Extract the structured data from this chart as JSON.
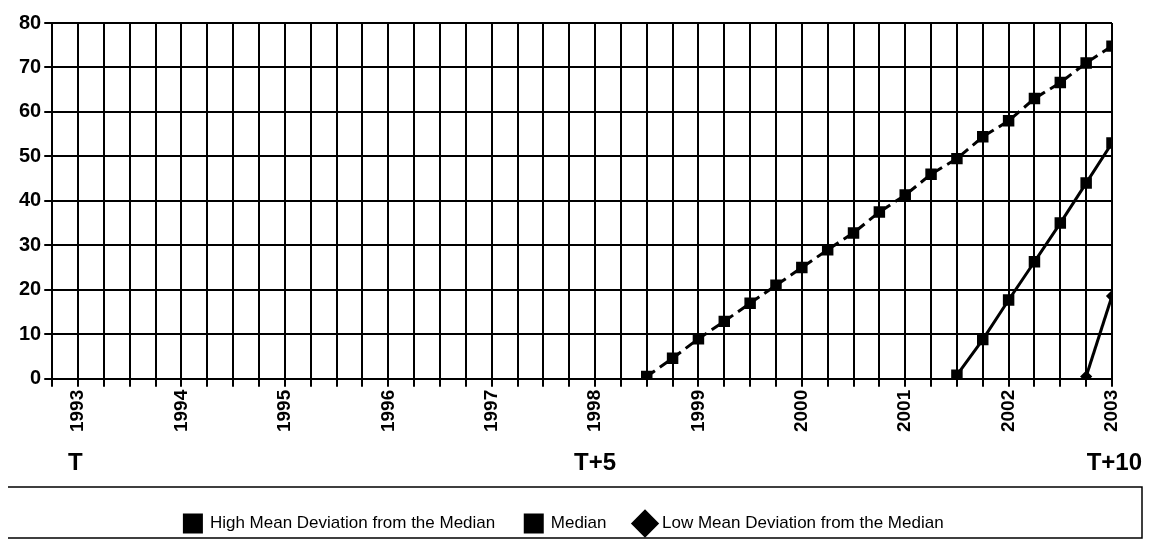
{
  "chart_data": {
    "type": "line",
    "xlim": [
      1992.75,
      2003
    ],
    "ylim": [
      0,
      80
    ],
    "yticks": [
      0,
      10,
      20,
      30,
      40,
      50,
      60,
      70,
      80
    ],
    "xticks": [
      {
        "value": 1992.75,
        "label": null
      },
      1993,
      {
        "value": 1993.25,
        "label": null
      },
      {
        "value": 1993.5,
        "label": null
      },
      {
        "value": 1993.75,
        "label": null
      },
      1994,
      {
        "value": 1994.25,
        "label": null
      },
      {
        "value": 1994.5,
        "label": null
      },
      {
        "value": 1994.75,
        "label": null
      },
      1995,
      {
        "value": 1995.25,
        "label": null
      },
      {
        "value": 1995.5,
        "label": null
      },
      {
        "value": 1995.75,
        "label": null
      },
      1996,
      {
        "value": 1996.25,
        "label": null
      },
      {
        "value": 1996.5,
        "label": null
      },
      {
        "value": 1996.75,
        "label": null
      },
      1997,
      {
        "value": 1997.25,
        "label": null
      },
      {
        "value": 1997.5,
        "label": null
      },
      {
        "value": 1997.75,
        "label": null
      },
      1998,
      {
        "value": 1998.25,
        "label": null
      },
      {
        "value": 1998.5,
        "label": null
      },
      {
        "value": 1998.75,
        "label": null
      },
      1999,
      {
        "value": 1999.25,
        "label": null
      },
      {
        "value": 1999.5,
        "label": null
      },
      {
        "value": 1999.75,
        "label": null
      },
      2000,
      {
        "value": 2000.25,
        "label": null
      },
      {
        "value": 2000.5,
        "label": null
      },
      {
        "value": 2000.75,
        "label": null
      },
      2001,
      {
        "value": 2001.25,
        "label": null
      },
      {
        "value": 2001.5,
        "label": null
      },
      {
        "value": 2001.75,
        "label": null
      },
      2002,
      {
        "value": 2002.25,
        "label": null
      },
      {
        "value": 2002.5,
        "label": null
      },
      {
        "value": 2002.75,
        "label": null
      },
      2003
    ],
    "grid": true,
    "legend": "bottom",
    "series": [
      {
        "name": "High Mean Deviation from the Median",
        "color": "#000000",
        "line_style": "dashed",
        "marker": "square",
        "x": [
          1998.5,
          1998.75,
          1999,
          1999.25,
          1999.5,
          1999.75,
          2000,
          2000.25,
          2000.5,
          2000.75,
          2001,
          2001.25,
          2001.5,
          2001.75,
          2002,
          2002.25,
          2002.5,
          2002.75,
          2003
        ],
        "values": [
          0.5,
          4.6,
          9,
          12.9,
          17,
          21,
          25,
          29,
          32.8,
          37.5,
          41.3,
          46,
          49.5,
          54.4,
          58,
          63,
          66.6,
          71,
          74.8
        ]
      },
      {
        "name": "Median",
        "color": "#000000",
        "line_style": "solid",
        "marker": "square",
        "x": [
          2001.5,
          2001.75,
          2002,
          2002.25,
          2002.5,
          2002.75,
          2003
        ],
        "values": [
          0.8,
          8.8,
          17.7,
          26.3,
          35,
          44,
          53
        ]
      },
      {
        "name": "Low Mean Deviation from the Median",
        "color": "#000000",
        "line_style": "solid",
        "marker": "diamond",
        "x": [
          2002.75,
          2003
        ],
        "values": [
          0.5,
          18.6
        ]
      }
    ],
    "annotations": [
      "T",
      "T+5",
      "T+10"
    ]
  }
}
